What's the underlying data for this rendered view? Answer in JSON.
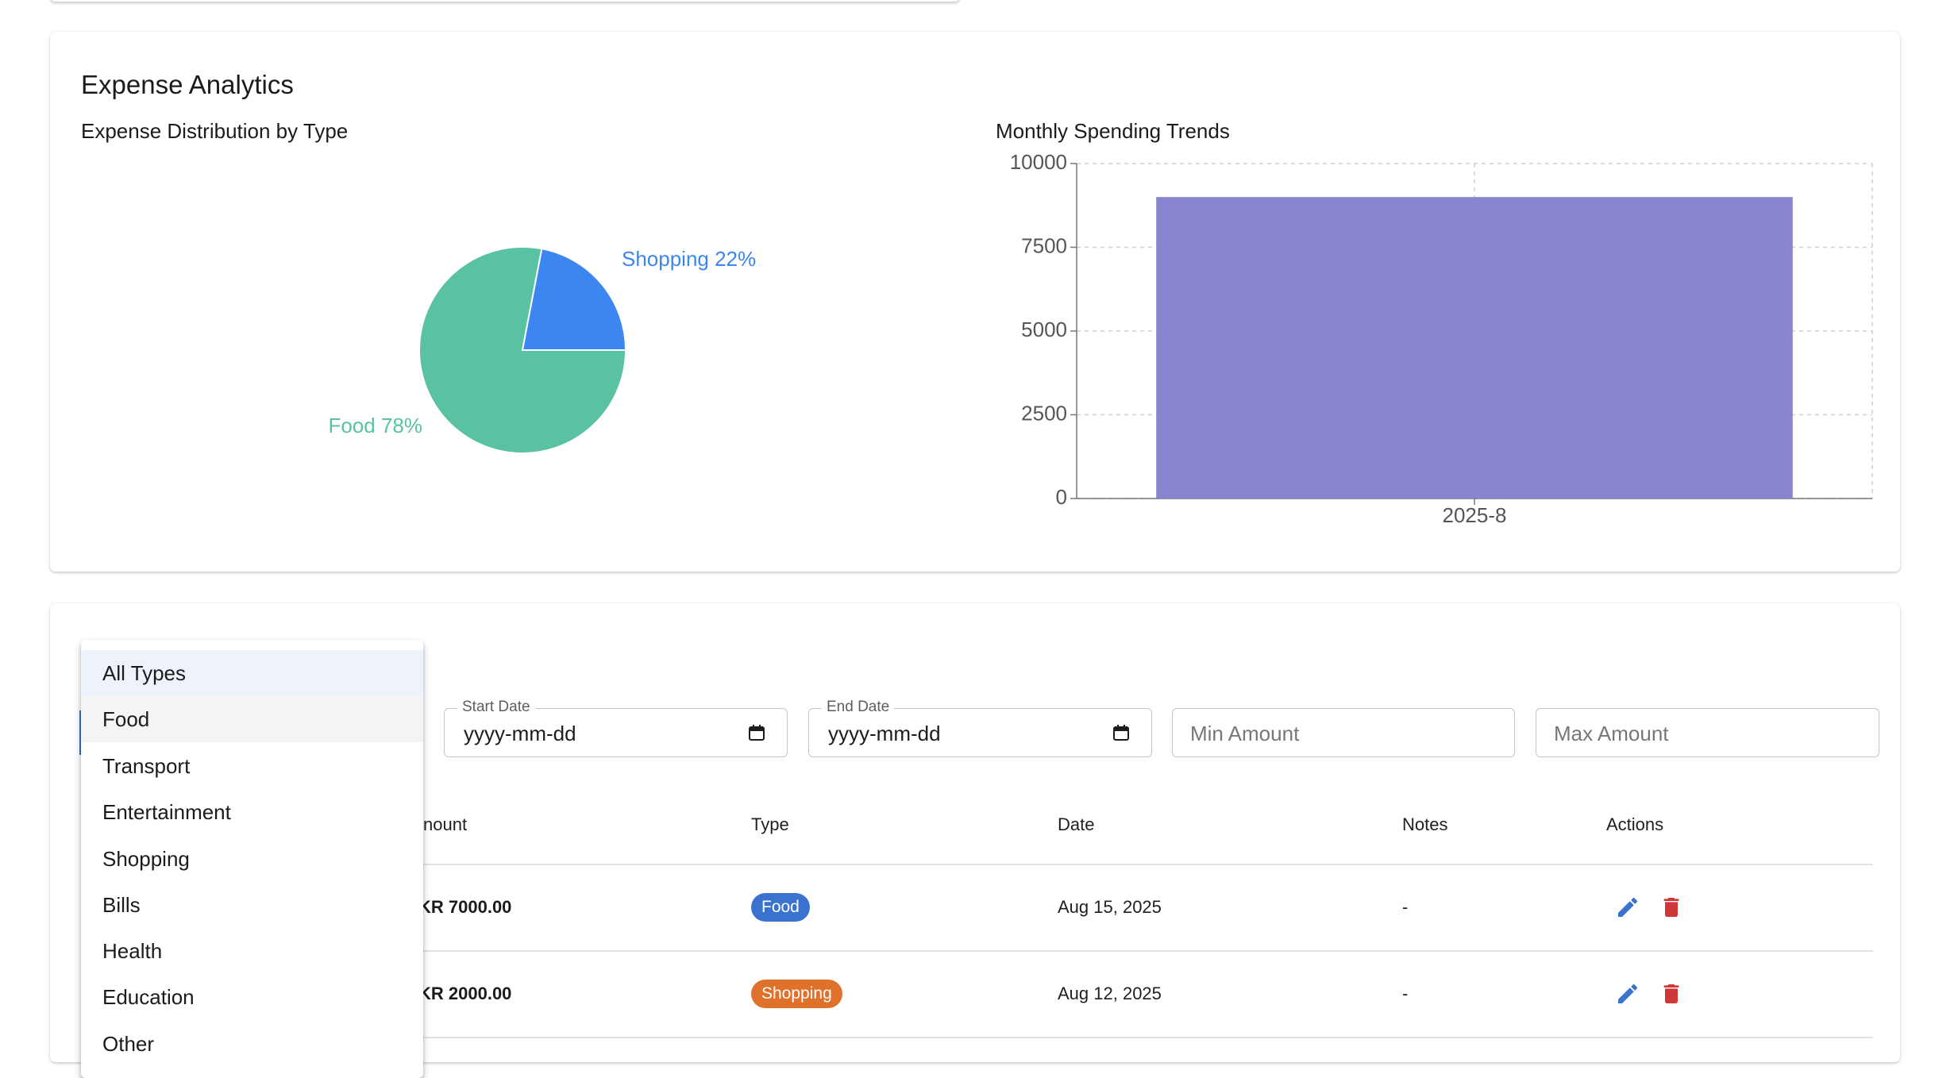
{
  "analytics": {
    "title": "Expense Analytics",
    "pie_title": "Expense Distribution by Type",
    "bar_title": "Monthly Spending Trends"
  },
  "chart_data": [
    {
      "type": "pie",
      "title": "Expense Distribution by Type",
      "labels": [
        "Food",
        "Shopping"
      ],
      "values": [
        78,
        22
      ],
      "label_texts": [
        "Food 78%",
        "Shopping 22%"
      ],
      "colors": [
        "#58c2a2",
        "#3b86f0"
      ]
    },
    {
      "type": "bar",
      "title": "Monthly Spending Trends",
      "categories": [
        "2025-8"
      ],
      "values": [
        9000
      ],
      "ylim": [
        0,
        10000
      ],
      "yticks": [
        0,
        2500,
        5000,
        7500,
        10000
      ],
      "grid": true,
      "color": "#8884d0"
    }
  ],
  "filters": {
    "start_date": {
      "label": "Start Date",
      "value": "yyyy-mm-dd"
    },
    "end_date": {
      "label": "End Date",
      "value": "yyyy-mm-dd"
    },
    "min_amount": {
      "placeholder": "Min Amount"
    },
    "max_amount": {
      "placeholder": "Max Amount"
    }
  },
  "table": {
    "headers": {
      "amount": "nount",
      "type": "Type",
      "date": "Date",
      "notes": "Notes",
      "actions": "Actions"
    },
    "rows": [
      {
        "amount": "KR 7000.00",
        "type": "Food",
        "type_color": "#3a73cf",
        "date": "Aug 15, 2025",
        "notes": "-"
      },
      {
        "amount": "KR 2000.00",
        "type": "Shopping",
        "type_color": "#e0712b",
        "date": "Aug 12, 2025",
        "notes": "-"
      }
    ]
  },
  "dropdown": {
    "selected": "All Types",
    "options": [
      "All Types",
      "Food",
      "Transport",
      "Entertainment",
      "Shopping",
      "Bills",
      "Health",
      "Education",
      "Other"
    ]
  },
  "colors": {
    "edit_icon": "#3a73cf",
    "delete_icon": "#cf3838"
  }
}
